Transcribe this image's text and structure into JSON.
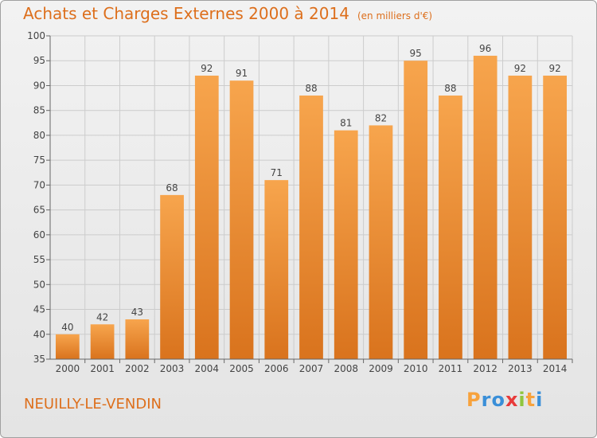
{
  "title": "Achats et Charges Externes 2000 à 2014",
  "subtitle": "(en milliers d'€)",
  "commune": "NEUILLY-LE-VENDIN",
  "brand": {
    "letters": [
      "P",
      "r",
      "o",
      "x",
      "i",
      "t",
      "i"
    ],
    "colors": [
      "#f7a23c",
      "#3a8fd8",
      "#3a8fd8",
      "#e83a3a",
      "#8fc63e",
      "#f7a23c",
      "#3a8fd8"
    ]
  },
  "colors": {
    "bar_light": "#f7a54d",
    "bar_dark": "#d9731d",
    "title": "#dd6f1c",
    "grid": "#cccccc"
  },
  "chart_data": {
    "type": "bar",
    "categories": [
      "2000",
      "2001",
      "2002",
      "2003",
      "2004",
      "2005",
      "2006",
      "2007",
      "2008",
      "2009",
      "2010",
      "2011",
      "2012",
      "2013",
      "2014"
    ],
    "values": [
      40,
      42,
      43,
      68,
      92,
      91,
      71,
      88,
      81,
      82,
      95,
      88,
      96,
      92,
      92
    ],
    "ylim": [
      35,
      100
    ],
    "yticks": [
      35,
      40,
      45,
      50,
      55,
      60,
      65,
      70,
      75,
      80,
      85,
      90,
      95,
      100
    ],
    "grid": true
  }
}
